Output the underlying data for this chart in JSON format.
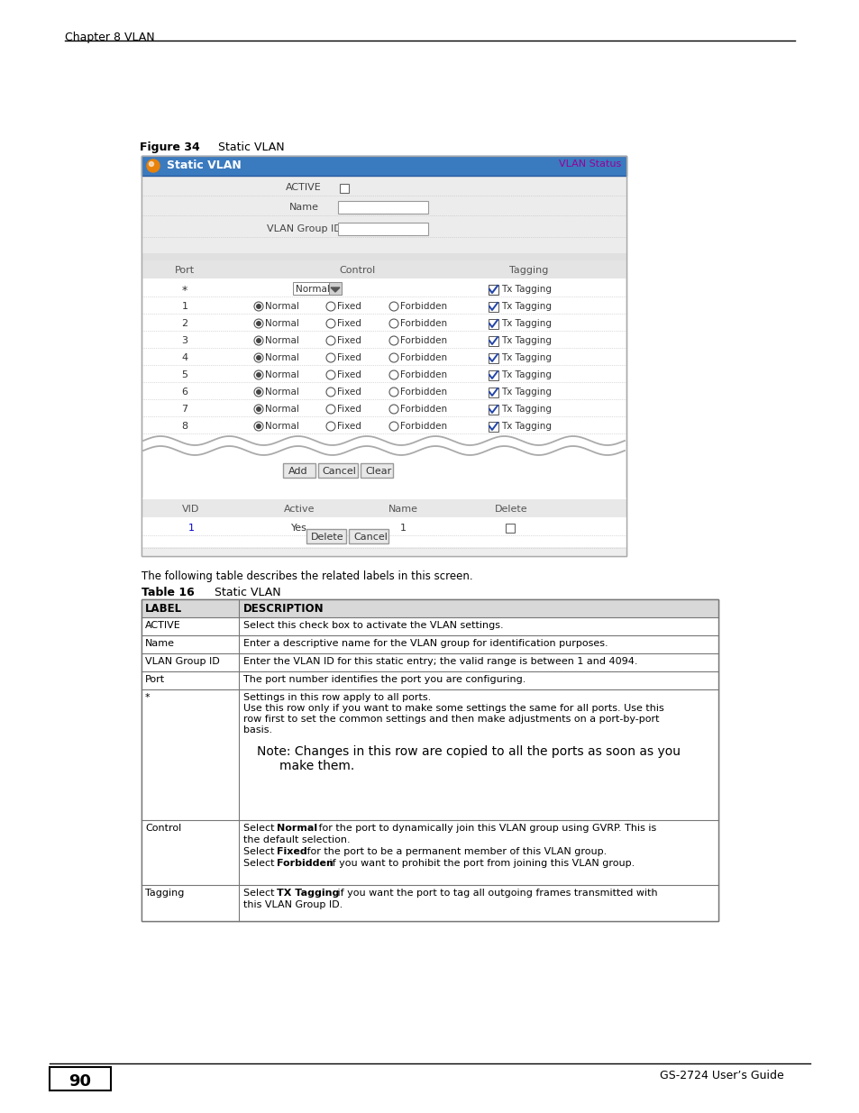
{
  "page_title": "Chapter 8 VLAN",
  "figure_label": "Figure 34",
  "figure_title": "Static VLAN",
  "table_label": "Table 16",
  "table_title": "Static VLAN",
  "vlan_status_text": "VLAN Status",
  "header_bg": "#3a7abf",
  "header_title": "Static VLAN",
  "intro_text": "The following table describes the related labels in this screen.",
  "page_number": "90",
  "footer_right": "GS-2724 User’s Guide",
  "bg_color": "#ffffff",
  "panel_border": "#aaaaaa",
  "gray_bg": "#e8e8e8",
  "header_row_bg": "#d0d0d0",
  "table_border": "#888888"
}
